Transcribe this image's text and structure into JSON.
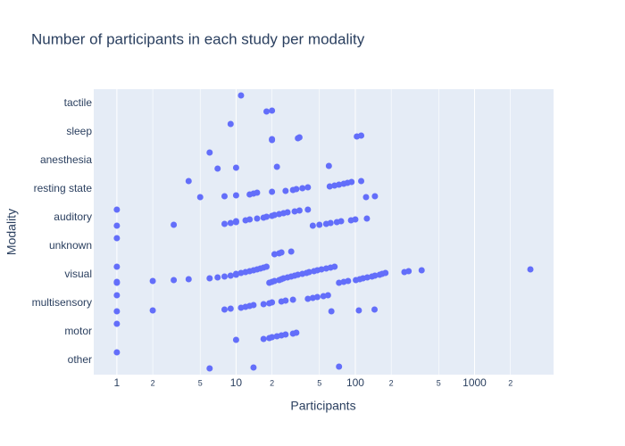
{
  "chart_data": {
    "type": "strip",
    "title": "Number of participants in each study per modality",
    "x_label": "Participants",
    "y_label": "Modality",
    "x_log": true,
    "grid": true,
    "color": "#636efa",
    "categories": [
      "tactile",
      "sleep",
      "anesthesia",
      "resting state",
      "auditory",
      "unknown",
      "visual",
      "multisensory",
      "motor",
      "other"
    ],
    "values": [
      [
        11,
        18,
        20
      ],
      [
        9,
        20,
        20,
        33,
        34,
        103,
        112
      ],
      [
        6,
        7,
        10,
        22,
        60
      ],
      [
        4,
        5,
        8,
        10,
        13,
        14,
        15,
        20,
        26,
        30,
        32,
        36,
        40,
        61,
        67,
        73,
        80,
        86,
        93,
        112,
        123,
        146
      ],
      [
        1,
        1,
        3,
        8,
        9,
        10,
        10,
        12,
        13,
        15,
        17,
        18,
        20,
        21,
        23,
        25,
        27,
        31,
        34,
        40,
        44,
        50,
        57,
        62,
        70,
        76,
        92,
        100,
        125
      ],
      [
        1,
        21,
        23,
        24,
        29
      ],
      [
        1,
        1,
        1,
        2,
        3,
        4,
        6,
        7,
        8,
        9,
        10,
        10,
        11,
        12,
        13,
        14,
        15,
        16,
        17,
        18,
        19,
        20,
        21,
        23,
        24,
        25,
        27,
        29,
        31,
        33,
        36,
        39,
        41,
        45,
        48,
        52,
        57,
        62,
        67,
        73,
        80,
        87,
        101,
        109,
        116,
        126,
        138,
        146,
        160,
        168,
        179,
        258,
        280,
        360,
        2940
      ],
      [
        1,
        1,
        2,
        8,
        9,
        11,
        12,
        13,
        14,
        17,
        19,
        20,
        24,
        26,
        30,
        40,
        44,
        48,
        54,
        59,
        63,
        107,
        145
      ],
      [
        1,
        10,
        17,
        19,
        20,
        22,
        24,
        26,
        30,
        32
      ],
      [
        1,
        6,
        14,
        73
      ]
    ],
    "xlim": [
      0.64,
      4600
    ],
    "xticks": [
      1,
      2,
      5,
      10,
      {
        "value": 20,
        "label": "2"
      },
      {
        "value": 50,
        "label": "5"
      },
      100,
      {
        "value": 200,
        "label": "2"
      },
      {
        "value": 500,
        "label": "5"
      },
      1000,
      {
        "value": 2000,
        "label": "2"
      }
    ]
  }
}
